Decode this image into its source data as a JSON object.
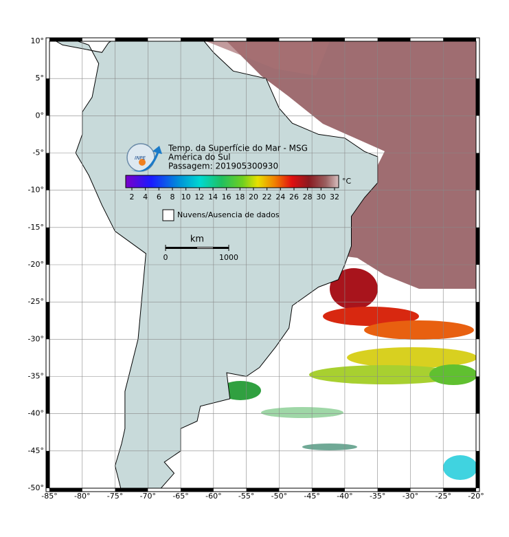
{
  "map": {
    "title_lines": [
      "Temp. da Superfície do Mar - MSG",
      "América do Sul",
      "Passagem: 201905300930"
    ],
    "logo_text": "INPE",
    "colorbar": {
      "ticks": [
        2,
        4,
        6,
        8,
        10,
        12,
        14,
        16,
        18,
        20,
        22,
        24,
        26,
        28,
        30,
        32
      ],
      "unit": "°C"
    },
    "legend_label": "Nuvens/Ausencia de dados",
    "scale_bar": {
      "unit": "km",
      "ticks": [
        0,
        1000
      ]
    },
    "lon_ticks": [
      {
        "value": -85,
        "label": "-85°"
      },
      {
        "value": -80,
        "label": "-80°"
      },
      {
        "value": -75,
        "label": "-75°"
      },
      {
        "value": -70,
        "label": "-70°"
      },
      {
        "value": -65,
        "label": "-65°"
      },
      {
        "value": -60,
        "label": "-60°"
      },
      {
        "value": -55,
        "label": "-55°"
      },
      {
        "value": -50,
        "label": "-50°"
      },
      {
        "value": -45,
        "label": "-45°"
      },
      {
        "value": -40,
        "label": "-40°"
      },
      {
        "value": -35,
        "label": "-35°"
      },
      {
        "value": -30,
        "label": "-30°"
      },
      {
        "value": -25,
        "label": "-25°"
      },
      {
        "value": -20,
        "label": "-20°"
      }
    ],
    "lat_ticks": [
      {
        "value": 10,
        "label": "10°"
      },
      {
        "value": 5,
        "label": "5°"
      },
      {
        "value": 0,
        "label": "0°"
      },
      {
        "value": -5,
        "label": "-5°"
      },
      {
        "value": -10,
        "label": "-10°"
      },
      {
        "value": -15,
        "label": "-15°"
      },
      {
        "value": -20,
        "label": "-20°"
      },
      {
        "value": -25,
        "label": "-25°"
      },
      {
        "value": -30,
        "label": "-30°"
      },
      {
        "value": -35,
        "label": "-35°"
      },
      {
        "value": -40,
        "label": "-40°"
      },
      {
        "value": -45,
        "label": "-45°"
      },
      {
        "value": -50,
        "label": "-50°"
      }
    ]
  }
}
